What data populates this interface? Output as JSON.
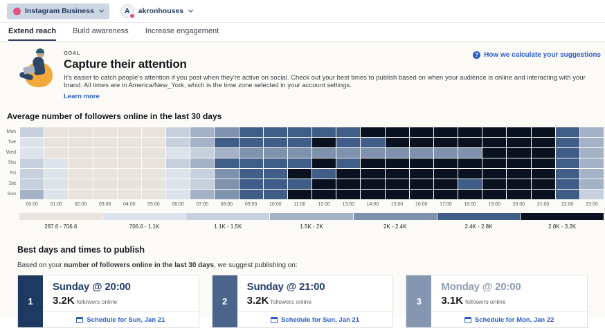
{
  "top_bar": {
    "channel_label": "Instagram Business",
    "account_initial": "A",
    "account_name": "akronhouses"
  },
  "tabs": [
    {
      "label": "Extend reach",
      "active": true
    },
    {
      "label": "Build awareness",
      "active": false
    },
    {
      "label": "Increase engagement",
      "active": false
    }
  ],
  "goal": {
    "eyebrow": "GOAL",
    "title": "Capture their attention",
    "description": "It's easier to catch people's attention if you post when they're active on social. Check out your best times to publish based on when your audience is online and interacting with your brand. All times are in America/New_York, which is the time zone selected in your account settings.",
    "learn_more": "Learn more",
    "help_link": "How we calculate your suggestions",
    "help_icon": "question-mark"
  },
  "chart_data": {
    "type": "heatmap",
    "title": "Average number of followers online in the last 30 days",
    "days": [
      "Mon",
      "Tue",
      "Wed",
      "Thu",
      "Fri",
      "Sat",
      "Sun"
    ],
    "hours": [
      "00:00",
      "01:00",
      "02:00",
      "03:00",
      "04:00",
      "05:00",
      "06:00",
      "07:00",
      "08:00",
      "09:00",
      "10:00",
      "11:00",
      "12:00",
      "13:00",
      "14:00",
      "15:00",
      "16:00",
      "17:00",
      "18:00",
      "19:00",
      "20:00",
      "21:00",
      "22:00",
      "23:00"
    ],
    "palette": {
      "1": "#e8e4dd",
      "2": "#dde3ea",
      "3": "#c7d1dd",
      "4": "#a3b2c6",
      "5": "#7e92ae",
      "6": "#3f5d86",
      "7": "#0a1120"
    },
    "legend": [
      {
        "label": "287.6 - 706.6",
        "level": 1
      },
      {
        "label": "706.6 - 1.1K",
        "level": 2
      },
      {
        "label": "1.1K - 1.5K",
        "level": 3
      },
      {
        "label": "1.5K - 2K",
        "level": 4
      },
      {
        "label": "2K - 2.4K",
        "level": 5
      },
      {
        "label": "2.4K - 2.8K",
        "level": 6
      },
      {
        "label": "2.8K - 3.2K",
        "level": 7
      }
    ],
    "matrix": [
      [
        3,
        1,
        1,
        1,
        1,
        1,
        3,
        4,
        5,
        6,
        6,
        6,
        6,
        6,
        7,
        7,
        7,
        7,
        7,
        7,
        7,
        7,
        6,
        4
      ],
      [
        2,
        1,
        1,
        1,
        1,
        1,
        3,
        4,
        6,
        6,
        6,
        6,
        7,
        6,
        6,
        7,
        7,
        7,
        7,
        7,
        7,
        7,
        6,
        4
      ],
      [
        2,
        1,
        1,
        1,
        1,
        1,
        2,
        3,
        4,
        5,
        5,
        5,
        5,
        5,
        5,
        5,
        5,
        5,
        5,
        7,
        7,
        7,
        6,
        4
      ],
      [
        3,
        2,
        1,
        1,
        1,
        1,
        3,
        4,
        6,
        6,
        6,
        6,
        7,
        6,
        7,
        7,
        7,
        7,
        7,
        7,
        7,
        7,
        6,
        4
      ],
      [
        3,
        2,
        1,
        1,
        1,
        1,
        2,
        3,
        5,
        6,
        6,
        7,
        6,
        7,
        7,
        7,
        7,
        7,
        7,
        7,
        7,
        7,
        6,
        4
      ],
      [
        3,
        2,
        1,
        1,
        1,
        1,
        2,
        3,
        5,
        6,
        6,
        6,
        7,
        7,
        7,
        7,
        7,
        7,
        6,
        7,
        7,
        7,
        6,
        4
      ],
      [
        4,
        2,
        1,
        1,
        1,
        1,
        2,
        4,
        5,
        6,
        6,
        7,
        7,
        7,
        7,
        7,
        7,
        7,
        7,
        7,
        7,
        7,
        6,
        3
      ]
    ]
  },
  "best_times": {
    "heading": "Best days and times to publish",
    "intro_prefix": "Based on your ",
    "intro_bold": "number of followers online in the last 30 days",
    "intro_suffix": ", we suggest publishing on:",
    "cards": [
      {
        "rank": "1",
        "rank_color": "#1e3a63",
        "title": "Sunday @ 20:00",
        "title_color": "#24416e",
        "value": "3.2K",
        "value_suffix": "followers online",
        "schedule_label": "Schedule for Sun, Jan 21"
      },
      {
        "rank": "2",
        "rank_color": "#4a648a",
        "title": "Sunday @ 21:00",
        "title_color": "#24416e",
        "value": "3.2K",
        "value_suffix": "followers online",
        "schedule_label": "Schedule for Sun, Jan 21"
      },
      {
        "rank": "3",
        "rank_color": "#8496b0",
        "title": "Monday @ 20:00",
        "title_color": "#8d9bb3",
        "value": "3.1K",
        "value_suffix": "followers online",
        "schedule_label": "Schedule for Mon, Jan 22"
      }
    ]
  }
}
